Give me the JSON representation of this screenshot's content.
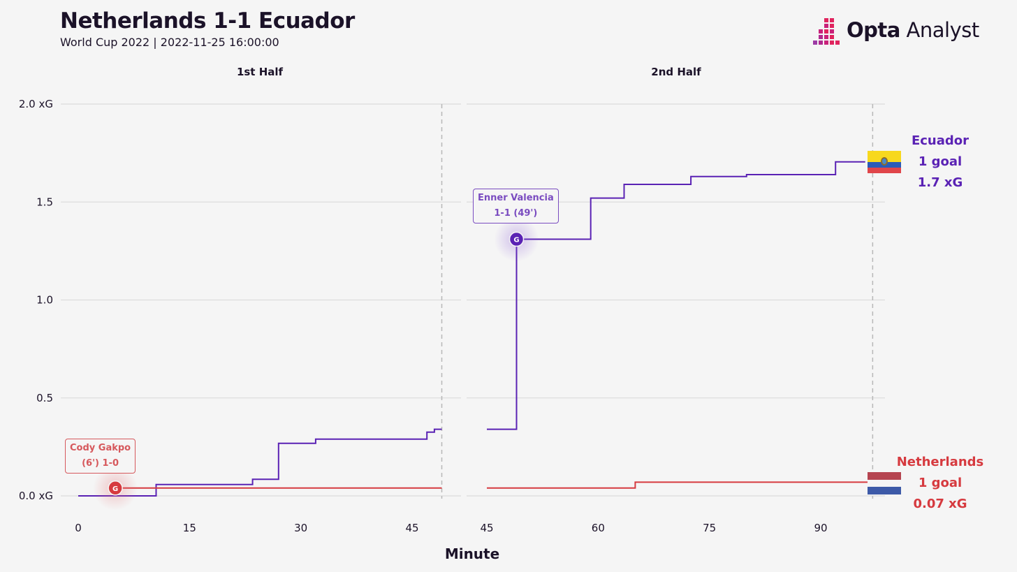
{
  "header": {
    "title": "Netherlands 1-1 Ecuador",
    "subtitle": "World Cup 2022 | 2022-11-25 16:00:00",
    "logo_bold": "Opta",
    "logo_light": " Analyst"
  },
  "chart_data": {
    "type": "line",
    "step": true,
    "xlabel": "Minute",
    "ylim": [
      0,
      2.0
    ],
    "yticks": [
      0,
      0.5,
      1.0,
      1.5,
      2.0
    ],
    "ytick_labels": [
      "0.0 xG",
      "0.5",
      "1.0",
      "1.5",
      "2.0 xG"
    ],
    "grid": true,
    "panels": [
      {
        "name": "1st Half",
        "xlim": [
          -2,
          49
        ],
        "xticks": [
          0,
          15,
          30,
          45
        ],
        "end_line": 49
      },
      {
        "name": "2nd Half",
        "xlim": [
          44.5,
          98
        ],
        "xticks": [
          45,
          60,
          75,
          90
        ],
        "end_line": 97
      }
    ],
    "series": [
      {
        "name": "Ecuador",
        "color": "#5a22b4",
        "goals": "1 goal",
        "xg_total": "1.7 xG",
        "first_half": [
          [
            0,
            0
          ],
          [
            10.5,
            0
          ],
          [
            10.5,
            0.058
          ],
          [
            23.5,
            0.058
          ],
          [
            23.5,
            0.085
          ],
          [
            27,
            0.085
          ],
          [
            27,
            0.268
          ],
          [
            32,
            0.268
          ],
          [
            32,
            0.29
          ],
          [
            47,
            0.29
          ],
          [
            47,
            0.325
          ],
          [
            48,
            0.325
          ],
          [
            48,
            0.34
          ],
          [
            49,
            0.34
          ]
        ],
        "second_half": [
          [
            45,
            0.34
          ],
          [
            49,
            0.34
          ],
          [
            49,
            1.31
          ],
          [
            59,
            1.31
          ],
          [
            59,
            1.52
          ],
          [
            63.5,
            1.52
          ],
          [
            63.5,
            1.59
          ],
          [
            72.5,
            1.59
          ],
          [
            72.5,
            1.63
          ],
          [
            80,
            1.63
          ],
          [
            80,
            1.64
          ],
          [
            92,
            1.64
          ],
          [
            92,
            1.705
          ],
          [
            96,
            1.705
          ]
        ]
      },
      {
        "name": "Netherlands",
        "color": "#d63a3f",
        "goals": "1 goal",
        "xg_total": "0.07 xG",
        "first_half": [
          [
            5,
            0.04
          ],
          [
            49,
            0.04
          ]
        ],
        "second_half": [
          [
            45,
            0.04
          ],
          [
            65,
            0.04
          ],
          [
            65,
            0.07
          ],
          [
            97,
            0.07
          ]
        ]
      }
    ],
    "annotations": [
      {
        "series": "Netherlands",
        "panel": 0,
        "x": 5,
        "y": 0.04,
        "marker": "G",
        "line1": "Cody Gakpo",
        "line2": "(6') 1-0"
      },
      {
        "series": "Ecuador",
        "panel": 1,
        "x": 49,
        "y": 1.31,
        "marker": "G",
        "line1": "Enner Valencia",
        "line2": "1-1 (49')"
      }
    ]
  }
}
